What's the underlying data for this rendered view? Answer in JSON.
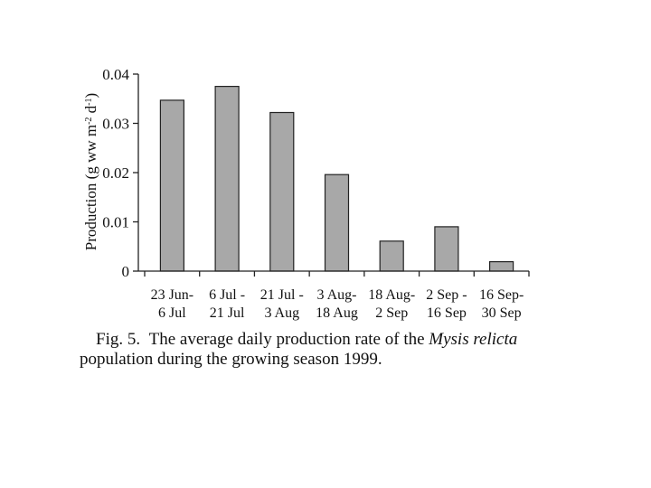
{
  "chart_data": {
    "type": "bar",
    "categories": [
      [
        "23 Jun-",
        "6 Jul"
      ],
      [
        "6 Jul -",
        "21 Jul"
      ],
      [
        "21 Jul -",
        "3 Aug"
      ],
      [
        "3 Aug-",
        "18 Aug"
      ],
      [
        "18 Aug-",
        "2 Sep"
      ],
      [
        "2 Sep -",
        "16 Sep"
      ],
      [
        "16 Sep-",
        "30 Sep"
      ]
    ],
    "values": [
      0.0347,
      0.0375,
      0.0322,
      0.0196,
      0.0061,
      0.009,
      0.0019
    ],
    "ylim": [
      0,
      0.04
    ],
    "yticks": [
      0,
      0.01,
      0.02,
      0.03,
      0.04
    ],
    "ytick_labels": [
      "0",
      "0.01",
      "0.02",
      "0.03",
      "0.04"
    ],
    "ylabel": {
      "main": "Production (g ww m",
      "sup1": "-2",
      "mid": " d",
      "sup2": "-1",
      "end": ")"
    },
    "xlabel": "",
    "title": "",
    "bar_color": "#a8a8a8",
    "bar_edge_color": "#222222"
  },
  "caption": {
    "label": "Fig. 5.",
    "text_before": "The average daily production rate of the ",
    "species": "Mysis relicta",
    "text_after": " population during the growing season 1999."
  }
}
